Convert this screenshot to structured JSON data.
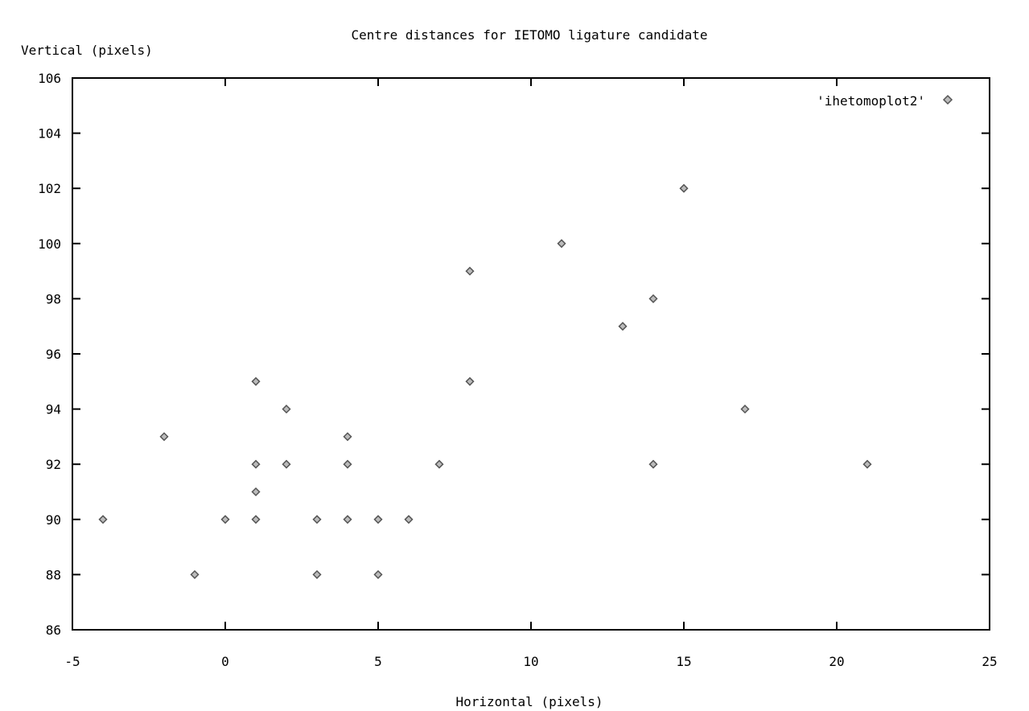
{
  "chart_data": {
    "type": "scatter",
    "title": "Centre distances for IETOMO ligature candidate",
    "xlabel": "Horizontal (pixels)",
    "ylabel": "Vertical (pixels)",
    "xlim": [
      -5,
      25
    ],
    "ylim": [
      86,
      106
    ],
    "xticks": [
      -5,
      0,
      5,
      10,
      15,
      20,
      25
    ],
    "yticks": [
      86,
      88,
      90,
      92,
      94,
      96,
      98,
      100,
      102,
      104,
      106
    ],
    "grid": false,
    "legend_position": "top-right",
    "series": [
      {
        "name": "'ihetomoplot2'",
        "color": "#555555",
        "marker": "diamond",
        "points": [
          [
            -4,
            90
          ],
          [
            -2,
            93
          ],
          [
            -1,
            88
          ],
          [
            0,
            90
          ],
          [
            1,
            95
          ],
          [
            1,
            92
          ],
          [
            1,
            91
          ],
          [
            1,
            90
          ],
          [
            2,
            94
          ],
          [
            2,
            92
          ],
          [
            3,
            90
          ],
          [
            3,
            88
          ],
          [
            4,
            93
          ],
          [
            4,
            92
          ],
          [
            4,
            90
          ],
          [
            5,
            90
          ],
          [
            5,
            88
          ],
          [
            6,
            90
          ],
          [
            7,
            92
          ],
          [
            8,
            99
          ],
          [
            8,
            95
          ],
          [
            11,
            100
          ],
          [
            13,
            97
          ],
          [
            14,
            98
          ],
          [
            14,
            92
          ],
          [
            15,
            102
          ],
          [
            17,
            94
          ],
          [
            21,
            92
          ]
        ]
      }
    ]
  }
}
